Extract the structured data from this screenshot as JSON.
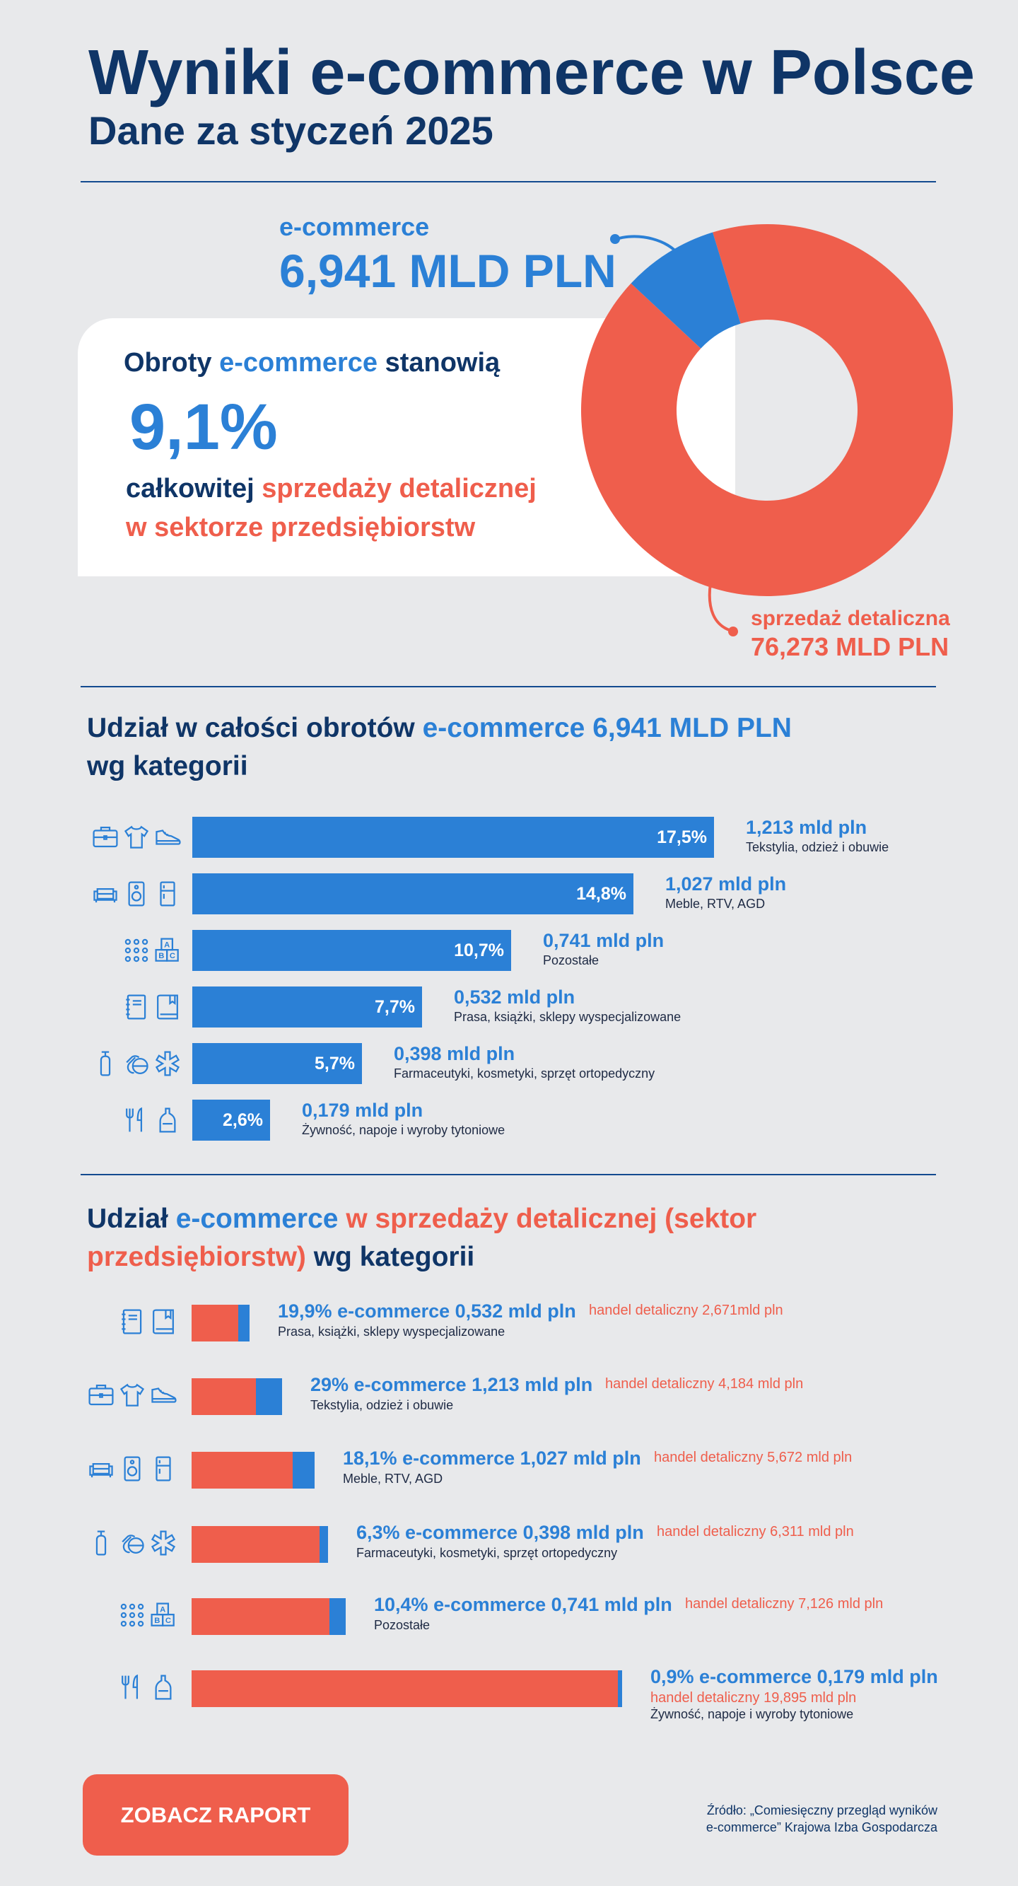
{
  "header": {
    "title": "Wyniki e-commerce w Polsce",
    "subtitle": "Dane za styczeń 2025"
  },
  "hero": {
    "ecommerce_label": "e-commerce",
    "ecommerce_value": "6,941 MLD PLN",
    "card_prefix": "Obroty ",
    "card_ecommerce": "e-commerce",
    "card_suffix": " stanowią",
    "card_percent": "9,1%",
    "card_line3_prefix": "całkowitej ",
    "card_line3_red": "sprzedaży detalicznej",
    "card_line4": "w sektorze przedsiębiorstw",
    "retail_label": "sprzedaż detaliczna",
    "retail_value": "76,273 MLD PLN"
  },
  "section1": {
    "title_part1": "Udział w całości obrotów ",
    "title_part2": "e-commerce 6,941 MLD PLN",
    "title_part3": "wg kategorii",
    "rows": [
      {
        "pct": "17,5%",
        "value": "1,213 mld pln",
        "category": "Tekstylia, odzież i obuwie",
        "icons": [
          "briefcase-icon",
          "tshirt-icon",
          "shoe-icon"
        ]
      },
      {
        "pct": "14,8%",
        "value": "1,027 mld pln",
        "category": "Meble, RTV, AGD",
        "icons": [
          "sofa-icon",
          "speaker-icon",
          "fridge-icon"
        ]
      },
      {
        "pct": "10,7%",
        "value": "0,741 mld pln",
        "category": "Pozostałe",
        "icons": [
          "dots-icon",
          "abc-blocks-icon"
        ]
      },
      {
        "pct": "7,7%",
        "value": "0,532 mld pln",
        "category": "Prasa, książki, sklepy wyspecjalizowane",
        "icons": [
          "notebook-icon",
          "book-icon"
        ]
      },
      {
        "pct": "5,7%",
        "value": "0,398 mld pln",
        "category": "Farmaceutyki, kosmetyki, sprzęt ortopedyczny",
        "icons": [
          "bottle-icon",
          "pills-icon",
          "medical-star-icon"
        ]
      },
      {
        "pct": "2,6%",
        "value": "0,179 mld pln",
        "category": "Żywność, napoje i wyroby tytoniowe",
        "icons": [
          "cutlery-icon",
          "drink-bottle-icon"
        ]
      }
    ]
  },
  "section2": {
    "title_part1": "Udział ",
    "title_part2": "e-commerce",
    "title_part3": " w sprzedaży detalicznej (sektor przedsiębiorstw)",
    "title_part4": " wg kategorii",
    "rows": [
      {
        "pct": "19,9%",
        "ecom": "e-commerce 0,532 mld pln",
        "retail": "handel detaliczny 2,671mld pln",
        "category": "Prasa, książki, sklepy wyspecjalizowane",
        "icons": [
          "notebook-icon",
          "book-icon"
        ]
      },
      {
        "pct": "29%",
        "ecom": "e-commerce 1,213 mld pln",
        "retail": "handel detaliczny 4,184 mld pln",
        "category": "Tekstylia, odzież i obuwie",
        "icons": [
          "briefcase-icon",
          "tshirt-icon",
          "shoe-icon"
        ]
      },
      {
        "pct": "18,1%",
        "ecom": "e-commerce 1,027 mld pln",
        "retail": "handel detaliczny 5,672 mld pln",
        "category": "Meble, RTV, AGD",
        "icons": [
          "sofa-icon",
          "speaker-icon",
          "fridge-icon"
        ]
      },
      {
        "pct": "6,3%",
        "ecom": "e-commerce 0,398 mld pln",
        "retail": "handel detaliczny 6,311 mld pln",
        "category": "Farmaceutyki, kosmetyki, sprzęt ortopedyczny",
        "icons": [
          "bottle-icon",
          "pills-icon",
          "medical-star-icon"
        ]
      },
      {
        "pct": "10,4%",
        "ecom": "e-commerce 0,741 mld pln",
        "retail": "handel detaliczny 7,126 mld pln",
        "category": "Pozostałe",
        "icons": [
          "dots-icon",
          "abc-blocks-icon"
        ]
      },
      {
        "pct": "0,9%",
        "ecom": "e-commerce 0,179 mld pln",
        "retail": "handel detaliczny 19,895 mld pln",
        "category": "Żywność, napoje i wyroby tytoniowe",
        "icons": [
          "cutlery-icon",
          "drink-bottle-icon"
        ]
      }
    ]
  },
  "footer": {
    "cta": "ZOBACZ RAPORT",
    "source_line1": "Źródło: „Comiesięczny przegląd wyników",
    "source_line2": "e-commerce” Krajowa Izba Gospodarcza"
  },
  "colors": {
    "navy": "#0f3567",
    "blue": "#2b80d6",
    "red": "#ef5e4c"
  },
  "chart_data": [
    {
      "type": "pie",
      "title": "",
      "categories": [
        "e-commerce",
        "sprzedaż detaliczna"
      ],
      "values": [
        6.941,
        76.273
      ],
      "unit": "MLD PLN"
    },
    {
      "type": "bar",
      "title": "Udział w całości obrotów e-commerce 6,941 MLD PLN wg kategorii",
      "categories": [
        "Tekstylia, odzież i obuwie",
        "Meble, RTV, AGD",
        "Pozostałe",
        "Prasa, książki, sklepy wyspecjalizowane",
        "Farmaceutyki, kosmetyki, sprzęt ortopedyczny",
        "Żywność, napoje i wyroby tytoniowe"
      ],
      "values": [
        17.5,
        14.8,
        10.7,
        7.7,
        5.7,
        2.6
      ],
      "amounts_mld_pln": [
        1.213,
        1.027,
        0.741,
        0.532,
        0.398,
        0.179
      ]
    },
    {
      "type": "bar",
      "title": "Udział e-commerce w sprzedaży detalicznej (sektor przedsiębiorstw) wg kategorii",
      "categories": [
        "Prasa, książki, sklepy wyspecjalizowane",
        "Tekstylia, odzież i obuwie",
        "Meble, RTV, AGD",
        "Farmaceutyki, kosmetyki, sprzęt ortopedyczny",
        "Pozostałe",
        "Żywność, napoje i wyroby tytoniowe"
      ],
      "series": [
        {
          "name": "handel detaliczny",
          "values": [
            2.671,
            4.184,
            5.672,
            6.311,
            7.126,
            19.895
          ]
        },
        {
          "name": "e-commerce",
          "values": [
            0.532,
            1.213,
            1.027,
            0.398,
            0.741,
            0.179
          ]
        }
      ],
      "share_percent": [
        19.9,
        29,
        18.1,
        6.3,
        10.4,
        0.9
      ]
    }
  ]
}
